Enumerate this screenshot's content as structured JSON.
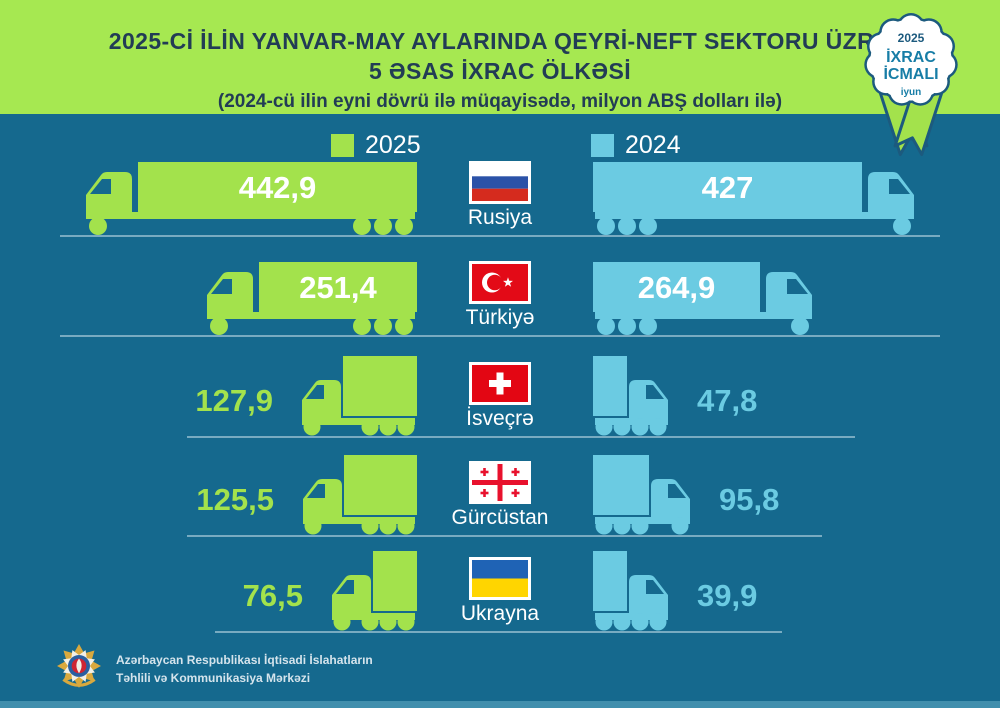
{
  "header": {
    "title_line1": "2025-Cİ İLİN YANVAR-MAY AYLARINDA QEYRİ-NEFT SEKTORU ÜZRƏ",
    "title_line2": "5 ƏSAS İXRAC ÖLKƏSİ",
    "subtitle": "(2024-cü ilin eyni dövrü ilə müqayisədə, milyon ABŞ dolları ilə)"
  },
  "badge": {
    "year": "2025",
    "line1": "İXRAC",
    "line2": "İCMALI",
    "month": "iyun"
  },
  "legend": {
    "left": {
      "label": "2025",
      "color": "#a3e24c"
    },
    "right": {
      "label": "2024",
      "color": "#6bcbe2"
    }
  },
  "colors": {
    "background": "#15698e",
    "header_bg": "#a6e851",
    "green": "#a3e24c",
    "blue": "#6bcbe2",
    "title_text": "#223c55",
    "badge_navy": "#1c5a7e",
    "badge_teal": "#177da6",
    "ground_line": "#bad7e3",
    "bottom_strip": "#418fad"
  },
  "rows": [
    {
      "country": "Rusiya",
      "flag": "russia",
      "value_2025": "442,9",
      "value_2024": "427",
      "num_2025": 442.9,
      "num_2024": 427.0
    },
    {
      "country": "Türkiyə",
      "flag": "turkey",
      "value_2025": "251,4",
      "value_2024": "264,9",
      "num_2025": 251.4,
      "num_2024": 264.9
    },
    {
      "country": "İsveçrə",
      "flag": "switzerland",
      "value_2025": "127,9",
      "value_2024": "47,8",
      "num_2025": 127.9,
      "num_2024": 47.8
    },
    {
      "country": "Gürcüstan",
      "flag": "georgia",
      "value_2025": "125,5",
      "value_2024": "95,8",
      "num_2025": 125.5,
      "num_2024": 95.8
    },
    {
      "country": "Ukrayna",
      "flag": "ukraine",
      "value_2025": "76,5",
      "value_2024": "39,9",
      "num_2025": 76.5,
      "num_2024": 39.9
    }
  ],
  "chart_data": {
    "type": "bar",
    "title": "2025-Cİ İLİN YANVAR-MAY AYLARINDA QEYRİ-NEFT SEKTORU ÜZRƏ 5 ƏSAS İXRAC ÖLKƏSİ",
    "subtitle": "(2024-cü ilin eyni dövrü ilə müqayisədə, milyon ABŞ dolları ilə)",
    "categories": [
      "Rusiya",
      "Türkiyə",
      "İsveçrə",
      "Gürcüstan",
      "Ukrayna"
    ],
    "series": [
      {
        "name": "2025",
        "values": [
          442.9,
          251.4,
          127.9,
          125.5,
          76.5
        ]
      },
      {
        "name": "2024",
        "values": [
          427.0,
          264.9,
          47.8,
          95.8,
          39.9
        ]
      }
    ],
    "unit": "milyon ABŞ dolları",
    "legend_position": "top",
    "orientation": "horizontal-pictogram-trucks"
  },
  "footer": {
    "line1": "Azərbaycan Respublikası İqtisadi İslahatların",
    "line2": "Təhlili və Kommunikasiya Mərkəzi"
  }
}
